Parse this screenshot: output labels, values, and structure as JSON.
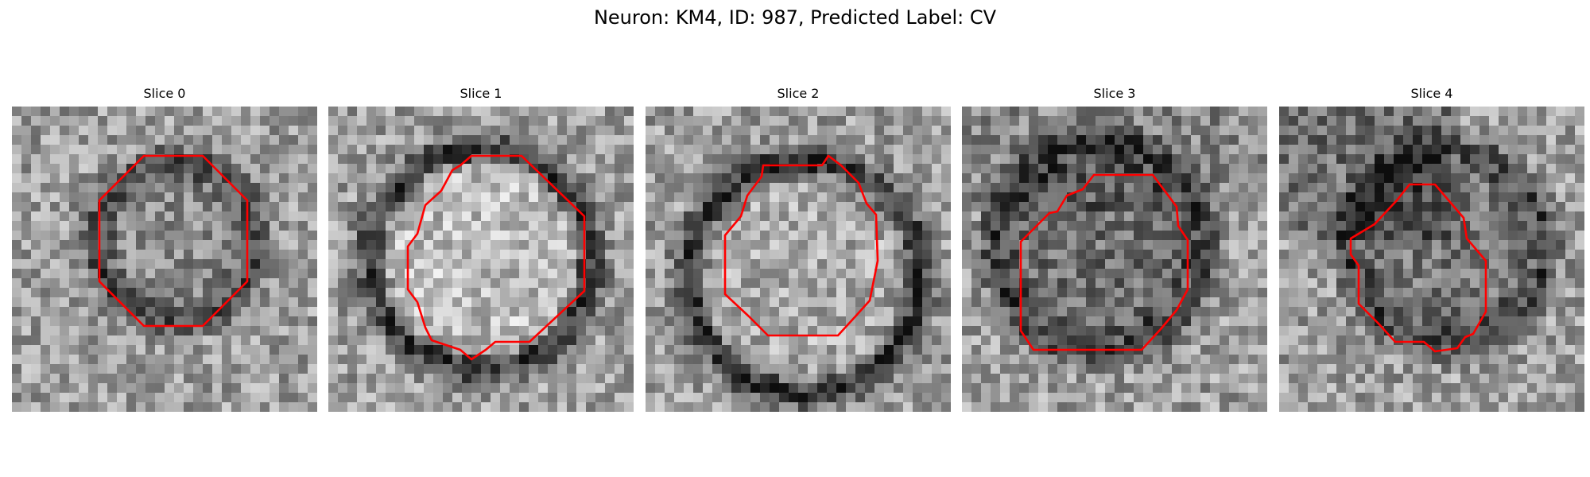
{
  "figure": {
    "title": "Neuron: KM4, ID: 987, Predicted Label: CV"
  },
  "slices": [
    {
      "title": "Slice 0",
      "mask_color": "#ff0000"
    },
    {
      "title": "Slice 1",
      "mask_color": "#ff0000"
    },
    {
      "title": "Slice 2",
      "mask_color": "#ff0000"
    },
    {
      "title": "Slice 3",
      "mask_color": "#ff0000"
    },
    {
      "title": "Slice 4",
      "mask_color": "#ff0000"
    }
  ],
  "colormap": "gray"
}
